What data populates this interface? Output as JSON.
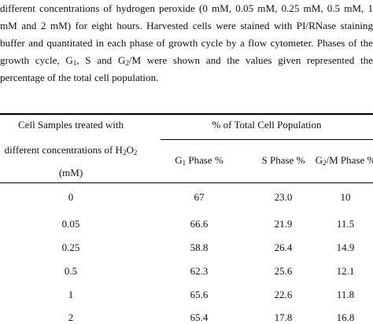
{
  "caption": {
    "line1": "different concentrations of hydrogen peroxide (0 mM, 0.05 mM, 0.25 mM, 0.5 mM, 1",
    "line2": "mM and 2 mM) for eight hours. Harvested cells were stained with PI/RNase staining",
    "line3": "buffer and quantitated in each phase of growth cycle by a flow cytometer. Phases of the",
    "line4_a": "growth cycle, G",
    "line4_sub1": "1",
    "line4_b": ", S and G",
    "line4_sub2": "2",
    "line4_c": "/M were shown and the values given represented the",
    "line5": "percentage of the total cell population."
  },
  "table": {
    "header_col0_line1": "Cell Samples treated with",
    "header_col0_line2a": "different concentrations of H",
    "header_col0_sub1": "2",
    "header_col0_line2b": "O",
    "header_col0_sub2": "2",
    "header_col0_line3": "(mM)",
    "header_group": "% of Total Cell Population",
    "header_g1_a": "G",
    "header_g1_sub": "1",
    "header_g1_b": " Phase %",
    "header_s": "S Phase %",
    "header_g2_a": "G",
    "header_g2_sub": "2",
    "header_g2_b": "/M Phase %",
    "rows": [
      {
        "conc": "0",
        "g1": "67",
        "s": "23.0",
        "g2m": "10"
      },
      {
        "conc": "0.05",
        "g1": "66.6",
        "s": "21.9",
        "g2m": "11.5"
      },
      {
        "conc": "0.25",
        "g1": "58.8",
        "s": "26.4",
        "g2m": "14.9"
      },
      {
        "conc": "0.5",
        "g1": "62.3",
        "s": "25.6",
        "g2m": "12.1"
      },
      {
        "conc": "1",
        "g1": "65.6",
        "s": "22.6",
        "g2m": "11.8"
      },
      {
        "conc": "2",
        "g1": "65.4",
        "s": "17.8",
        "g2m": "16.8"
      }
    ]
  }
}
